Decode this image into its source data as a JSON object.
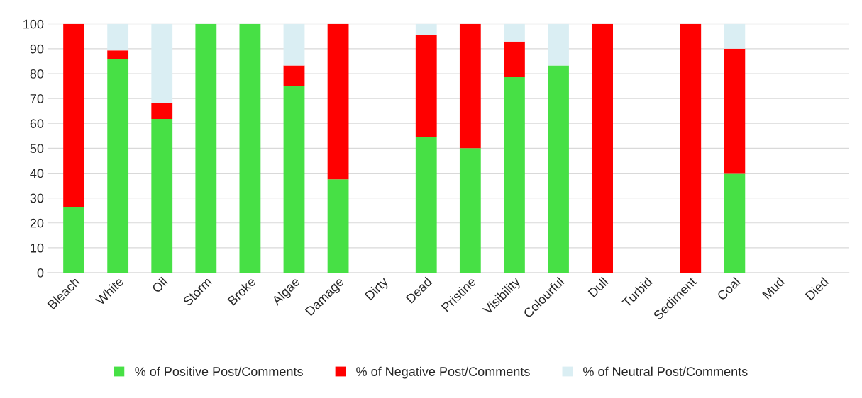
{
  "chart_data": {
    "type": "bar",
    "stacked": true,
    "categories": [
      "Bleach",
      "White",
      "Oil",
      "Storm",
      "Broke",
      "Algae",
      "Damage",
      "Dirty",
      "Dead",
      "Pristine",
      "Visibility",
      "Colourful",
      "Dull",
      "Turbid",
      "Sediment",
      "Coal",
      "Mud",
      "Died"
    ],
    "series": [
      {
        "name": "% of Positive Post/Comments",
        "color": "#47e045",
        "values": [
          26.5,
          85.7,
          61.8,
          100,
          100,
          75,
          37.5,
          0,
          54.5,
          50,
          78.6,
          83.3,
          0,
          0,
          0,
          40,
          0,
          0
        ]
      },
      {
        "name": "% of Negative Post/Comments",
        "color": "#ff0000",
        "values": [
          73.5,
          3.6,
          6.5,
          0,
          0,
          8.3,
          62.5,
          0,
          41,
          50,
          14.3,
          0,
          100,
          0,
          100,
          50,
          0,
          0
        ]
      },
      {
        "name": "% of Neutral Post/Comments",
        "color": "#daeef3",
        "values": [
          0,
          10.7,
          31.7,
          0,
          0,
          16.7,
          0,
          0,
          4.5,
          0,
          7.1,
          16.7,
          0,
          0,
          0,
          10,
          0,
          0
        ]
      }
    ],
    "ylim": [
      0,
      100
    ],
    "yticks": [
      0,
      10,
      20,
      30,
      40,
      50,
      60,
      70,
      80,
      90,
      100
    ],
    "grid": "y",
    "legend": "bottom"
  }
}
